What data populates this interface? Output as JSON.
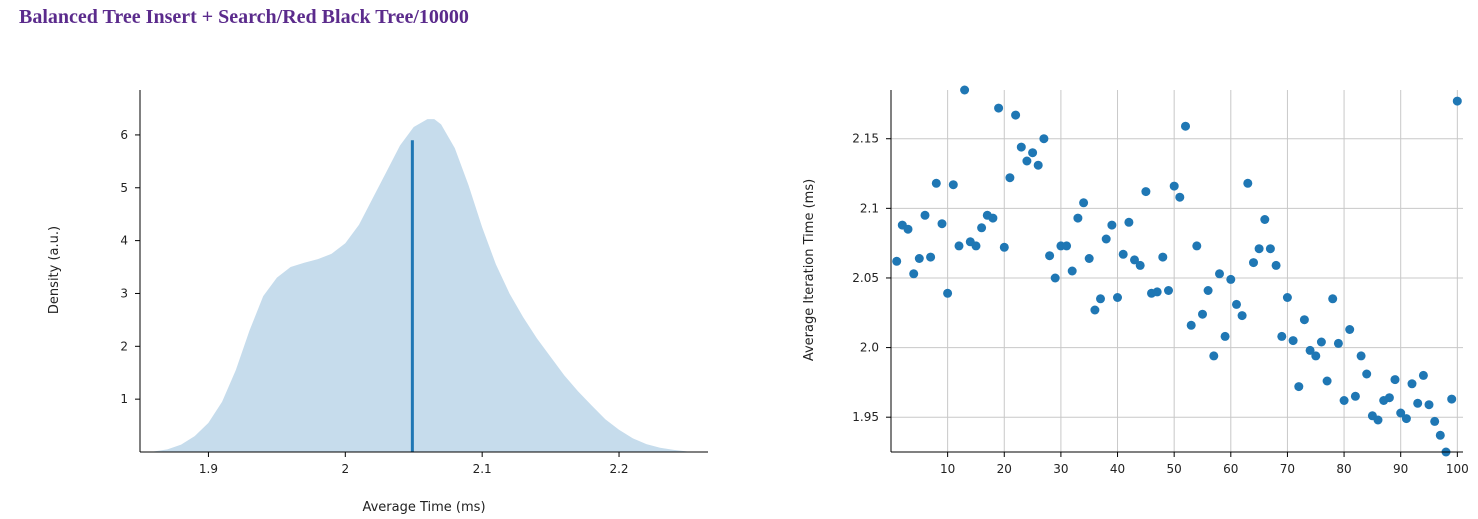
{
  "page": {
    "title": "Balanced Tree Insert + Search/Red Black Tree/10000"
  },
  "chart_data": [
    {
      "type": "area",
      "xlabel": "Average Time (ms)",
      "ylabel": "Density (a.u.)",
      "xlim": [
        1.85,
        2.265
      ],
      "ylim": [
        0,
        6.85
      ],
      "x_ticks": [
        "1.9",
        "2",
        "2.1",
        "2.2"
      ],
      "y_ticks": [
        "1",
        "2",
        "3",
        "4",
        "5",
        "6"
      ],
      "grid": false,
      "fill_color": "#c6dcec",
      "marker_color": "#1f77b4",
      "mean_x": 2.049,
      "mean_density": 5.9,
      "density_x": [
        1.85,
        1.86,
        1.87,
        1.88,
        1.89,
        1.9,
        1.91,
        1.92,
        1.93,
        1.94,
        1.95,
        1.96,
        1.97,
        1.98,
        1.99,
        2.0,
        2.01,
        2.02,
        2.03,
        2.04,
        2.05,
        2.06,
        2.065,
        2.07,
        2.08,
        2.09,
        2.1,
        2.11,
        2.12,
        2.13,
        2.14,
        2.15,
        2.16,
        2.17,
        2.18,
        2.19,
        2.2,
        2.21,
        2.22,
        2.23,
        2.24,
        2.25,
        2.265
      ],
      "density_y": [
        0.0,
        0.01,
        0.05,
        0.14,
        0.3,
        0.55,
        0.95,
        1.55,
        2.3,
        2.95,
        3.3,
        3.5,
        3.58,
        3.65,
        3.75,
        3.95,
        4.3,
        4.8,
        5.3,
        5.8,
        6.15,
        6.3,
        6.3,
        6.2,
        5.75,
        5.05,
        4.25,
        3.55,
        3.0,
        2.55,
        2.15,
        1.8,
        1.45,
        1.15,
        0.88,
        0.62,
        0.42,
        0.26,
        0.15,
        0.08,
        0.04,
        0.01,
        0.0
      ]
    },
    {
      "type": "scatter",
      "xlabel": "",
      "ylabel": "Average Iteration Time (ms)",
      "xlim": [
        0,
        101
      ],
      "ylim": [
        1.925,
        2.185
      ],
      "x_ticks": [
        "10",
        "20",
        "30",
        "40",
        "50",
        "60",
        "70",
        "80",
        "90",
        "100"
      ],
      "y_ticks": [
        "1.95",
        "2.0",
        "2.05",
        "2.1",
        "2.15"
      ],
      "grid": true,
      "point_color": "#1f77b4",
      "x": [
        1,
        2,
        3,
        4,
        5,
        6,
        7,
        8,
        9,
        10,
        11,
        12,
        13,
        14,
        15,
        16,
        17,
        18,
        19,
        20,
        21,
        22,
        23,
        24,
        25,
        26,
        27,
        28,
        29,
        30,
        31,
        32,
        33,
        34,
        35,
        36,
        37,
        38,
        39,
        40,
        41,
        42,
        43,
        44,
        45,
        46,
        47,
        48,
        49,
        50,
        51,
        52,
        53,
        54,
        55,
        56,
        57,
        58,
        59,
        60,
        61,
        62,
        63,
        64,
        65,
        66,
        67,
        68,
        69,
        70,
        71,
        72,
        73,
        74,
        75,
        76,
        77,
        78,
        79,
        80,
        81,
        82,
        83,
        84,
        85,
        86,
        87,
        88,
        89,
        90,
        91,
        92,
        93,
        94,
        95,
        96,
        97,
        98,
        99,
        100
      ],
      "y": [
        2.062,
        2.088,
        2.085,
        2.053,
        2.064,
        2.095,
        2.065,
        2.118,
        2.089,
        2.039,
        2.117,
        2.073,
        2.185,
        2.076,
        2.073,
        2.086,
        2.095,
        2.093,
        2.172,
        2.072,
        2.122,
        2.167,
        2.144,
        2.134,
        2.14,
        2.131,
        2.15,
        2.066,
        2.05,
        2.073,
        2.073,
        2.055,
        2.093,
        2.104,
        2.064,
        2.027,
        2.035,
        2.078,
        2.088,
        2.036,
        2.067,
        2.09,
        2.063,
        2.059,
        2.112,
        2.039,
        2.04,
        2.065,
        2.041,
        2.116,
        2.108,
        2.159,
        2.016,
        2.073,
        2.024,
        2.041,
        1.994,
        2.053,
        2.008,
        2.049,
        2.031,
        2.023,
        2.118,
        2.061,
        2.071,
        2.092,
        2.071,
        2.059,
        2.008,
        2.036,
        2.005,
        1.972,
        2.02,
        1.998,
        1.994,
        2.004,
        1.976,
        2.035,
        2.003,
        1.962,
        2.013,
        1.965,
        1.994,
        1.981,
        1.951,
        1.948,
        1.962,
        1.964,
        1.977,
        1.953,
        1.949,
        1.974,
        1.96,
        1.98,
        1.959,
        1.947,
        1.937,
        1.925,
        1.963,
        2.177
      ]
    }
  ]
}
